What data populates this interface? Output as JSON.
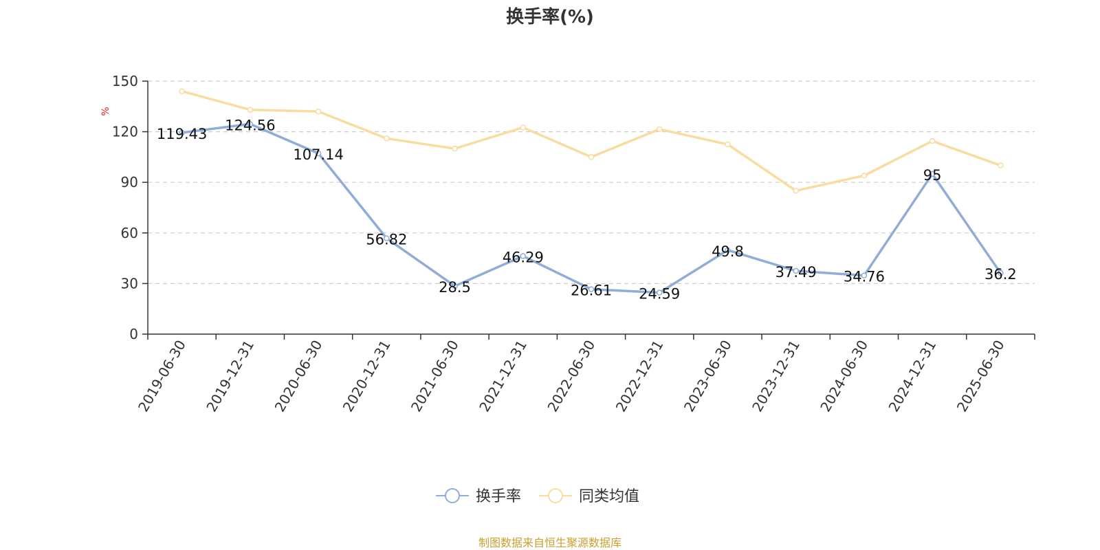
{
  "chart_data": {
    "type": "line",
    "title": "换手率(%)",
    "ylabel": "%",
    "ylim": [
      0,
      150
    ],
    "yticks": [
      0,
      30,
      60,
      90,
      120,
      150
    ],
    "grid": true,
    "legend_position": "bottom-center",
    "categories": [
      "2019-06-30",
      "2019-12-31",
      "2020-06-30",
      "2020-12-31",
      "2021-06-30",
      "2021-12-31",
      "2022-06-30",
      "2022-12-31",
      "2023-06-30",
      "2023-12-31",
      "2024-06-30",
      "2024-12-31",
      "2025-06-30"
    ],
    "series": [
      {
        "name": "换手率",
        "color": "#8eaed9",
        "show_labels": true,
        "values": [
          119.43,
          124.56,
          107.14,
          56.82,
          28.5,
          46.29,
          26.61,
          24.59,
          49.8,
          37.49,
          34.76,
          95,
          36.2
        ],
        "labels": [
          "119.43",
          "124.56",
          "107.14",
          "56.82",
          "28.5",
          "46.29",
          "26.61",
          "24.59",
          "49.8",
          "37.49",
          "34.76",
          "95",
          "36.2"
        ]
      },
      {
        "name": "同类均值",
        "color": "#fadba0",
        "show_labels": false,
        "values": [
          144,
          133,
          132,
          116,
          110,
          122.5,
          105,
          121.5,
          112.5,
          85,
          94,
          114.5,
          100
        ]
      }
    ]
  },
  "colors": {
    "unit_label": "#e02020",
    "source": "#c8a030",
    "axis": "#333333",
    "grid": "#cccccc"
  },
  "source_text": "制图数据来自恒生聚源数据库"
}
